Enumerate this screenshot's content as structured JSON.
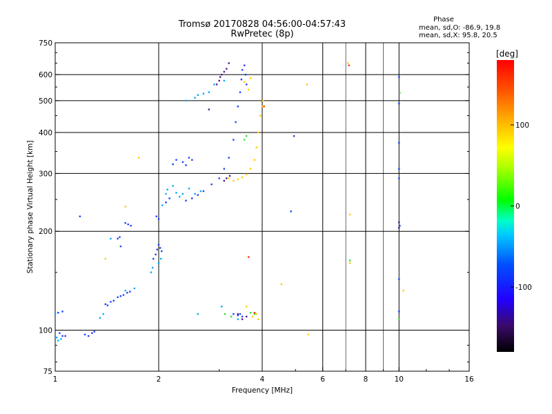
{
  "chart_data": {
    "type": "scatter",
    "title": "Tromsø 20170828 04:56:00-04:57:43",
    "subtitle": "RwPretec (8p)",
    "stats": {
      "heading": "Phase",
      "o_line": "mean, sd,O: -86.9, 19.8",
      "x_line": "mean, sd,X:  95.8, 20.5"
    },
    "xlabel": "Frequency [MHz]",
    "ylabel": "Stationary phase Virtual Height [km]",
    "x_scale": "log",
    "y_scale": "log",
    "xlim": [
      1,
      16
    ],
    "ylim": [
      75,
      750
    ],
    "grid": true,
    "x_ticks": [
      1,
      2,
      4,
      6,
      8,
      10,
      16
    ],
    "x_major_gridlines": [
      2,
      4,
      6,
      8,
      10
    ],
    "x_minor_gridlines": [
      7,
      9
    ],
    "y_ticks": [
      75,
      100,
      200,
      300,
      400,
      500,
      600,
      750
    ],
    "y_gridlines": [
      100,
      200,
      300,
      400,
      500,
      600
    ],
    "colorbar": {
      "label": "[deg]",
      "range": [
        -180,
        180
      ],
      "ticks": [
        100,
        0,
        -100
      ]
    },
    "series": [
      {
        "color": "#1f3fff",
        "points": [
          [
            1.02,
            113
          ],
          [
            1.05,
            114
          ],
          [
            1.03,
            98
          ],
          [
            1.05,
            96
          ],
          [
            1.07,
            96
          ],
          [
            1.22,
            97
          ],
          [
            1.25,
            96
          ],
          [
            1.28,
            98
          ],
          [
            1.3,
            99
          ],
          [
            1.42,
            119
          ],
          [
            1.45,
            122
          ],
          [
            1.48,
            123
          ],
          [
            1.52,
            126
          ],
          [
            1.55,
            127
          ],
          [
            1.58,
            128
          ],
          [
            1.62,
            130
          ],
          [
            1.65,
            131
          ],
          [
            1.52,
            190
          ],
          [
            1.54,
            192
          ],
          [
            1.6,
            212
          ],
          [
            1.63,
            210
          ],
          [
            1.66,
            208
          ],
          [
            1.93,
            165
          ],
          [
            1.96,
            170
          ],
          [
            1.98,
            176
          ],
          [
            2.0,
            182
          ],
          [
            2.02,
            178
          ],
          [
            2.04,
            174
          ],
          [
            1.97,
            222
          ],
          [
            2.0,
            218
          ],
          [
            2.1,
            245
          ],
          [
            2.15,
            252
          ],
          [
            2.2,
            320
          ],
          [
            2.25,
            330
          ],
          [
            2.35,
            325
          ],
          [
            2.4,
            318
          ],
          [
            2.45,
            335
          ],
          [
            2.5,
            330
          ],
          [
            2.4,
            248
          ],
          [
            2.5,
            252
          ],
          [
            2.6,
            258
          ],
          [
            2.7,
            265
          ],
          [
            2.85,
            278
          ],
          [
            3.0,
            290
          ],
          [
            3.1,
            310
          ],
          [
            3.2,
            335
          ],
          [
            3.3,
            380
          ],
          [
            3.35,
            430
          ],
          [
            3.4,
            480
          ],
          [
            3.45,
            530
          ],
          [
            3.48,
            580
          ],
          [
            3.5,
            620
          ],
          [
            3.55,
            640
          ],
          [
            3.58,
            600
          ],
          [
            3.6,
            560
          ],
          [
            3.45,
            112
          ],
          [
            3.5,
            110
          ],
          [
            3.4,
            111
          ],
          [
            3.3,
            112
          ],
          [
            4.95,
            390
          ],
          [
            4.85,
            230
          ],
          [
            10.0,
            590
          ],
          [
            10.0,
            490
          ],
          [
            10.0,
            372
          ],
          [
            10.0,
            310
          ],
          [
            10.0,
            290
          ],
          [
            10.05,
            208
          ],
          [
            10.0,
            143
          ],
          [
            10.0,
            114
          ],
          [
            1.18,
            222
          ],
          [
            1.4,
            120
          ],
          [
            1.55,
            180
          ]
        ]
      },
      {
        "color": "#00aaff",
        "points": [
          [
            1.0,
            112
          ],
          [
            1.01,
            95
          ],
          [
            1.02,
            93
          ],
          [
            1.04,
            94
          ],
          [
            1.35,
            109
          ],
          [
            1.38,
            112
          ],
          [
            1.6,
            132
          ],
          [
            1.7,
            134
          ],
          [
            1.9,
            150
          ],
          [
            1.92,
            155
          ],
          [
            2.0,
            160
          ],
          [
            2.03,
            165
          ],
          [
            2.05,
            240
          ],
          [
            2.1,
            260
          ],
          [
            2.12,
            268
          ],
          [
            2.2,
            275
          ],
          [
            2.25,
            262
          ],
          [
            2.3,
            255
          ],
          [
            2.35,
            260
          ],
          [
            2.45,
            270
          ],
          [
            2.55,
            260
          ],
          [
            2.65,
            265
          ],
          [
            2.4,
            500
          ],
          [
            2.55,
            510
          ],
          [
            2.6,
            520
          ],
          [
            2.7,
            525
          ],
          [
            2.8,
            530
          ],
          [
            2.9,
            560
          ],
          [
            3.05,
            118
          ],
          [
            3.4,
            108
          ],
          [
            2.6,
            112
          ],
          [
            3.1,
            575
          ],
          [
            1.45,
            190
          ]
        ]
      },
      {
        "color": "#33dd33",
        "points": [
          [
            3.12,
            112
          ],
          [
            3.25,
            110
          ],
          [
            3.7,
            113
          ],
          [
            3.8,
            112
          ],
          [
            3.55,
            380
          ],
          [
            3.6,
            390
          ],
          [
            7.2,
            163
          ],
          [
            10.0,
            108
          ],
          [
            10.05,
            528
          ]
        ]
      },
      {
        "color": "#ffcc00",
        "points": [
          [
            3.2,
            290
          ],
          [
            3.3,
            285
          ],
          [
            3.4,
            288
          ],
          [
            3.5,
            292
          ],
          [
            3.6,
            298
          ],
          [
            3.7,
            310
          ],
          [
            3.8,
            330
          ],
          [
            3.85,
            360
          ],
          [
            3.9,
            400
          ],
          [
            3.95,
            450
          ],
          [
            4.0,
            480
          ],
          [
            4.02,
            500
          ],
          [
            3.65,
            540
          ],
          [
            3.55,
            570
          ],
          [
            3.7,
            585
          ],
          [
            3.6,
            118
          ],
          [
            3.75,
            110
          ],
          [
            3.85,
            112
          ],
          [
            3.9,
            108
          ],
          [
            5.4,
            560
          ],
          [
            4.55,
            138
          ],
          [
            5.45,
            97
          ],
          [
            7.1,
            650
          ],
          [
            7.2,
            225
          ],
          [
            10.3,
            132
          ],
          [
            1.75,
            335
          ],
          [
            1.6,
            238
          ],
          [
            1.4,
            165
          ],
          [
            7.2,
            160
          ]
        ]
      },
      {
        "color": "#ff3300",
        "points": [
          [
            3.65,
            167
          ],
          [
            3.8,
            113
          ],
          [
            4.05,
            480
          ],
          [
            7.15,
            640
          ]
        ]
      },
      {
        "color": "#4b1a8f",
        "points": [
          [
            2.95,
            560
          ],
          [
            3.0,
            575
          ],
          [
            3.02,
            590
          ],
          [
            3.05,
            600
          ],
          [
            3.1,
            612
          ],
          [
            3.15,
            625
          ],
          [
            3.2,
            650
          ],
          [
            3.1,
            285
          ],
          [
            3.15,
            290
          ],
          [
            3.22,
            295
          ],
          [
            3.4,
            112
          ],
          [
            3.5,
            108
          ],
          [
            3.6,
            110
          ],
          [
            10.0,
            205
          ],
          [
            10.0,
            213
          ],
          [
            2.8,
            470
          ]
        ]
      }
    ]
  }
}
